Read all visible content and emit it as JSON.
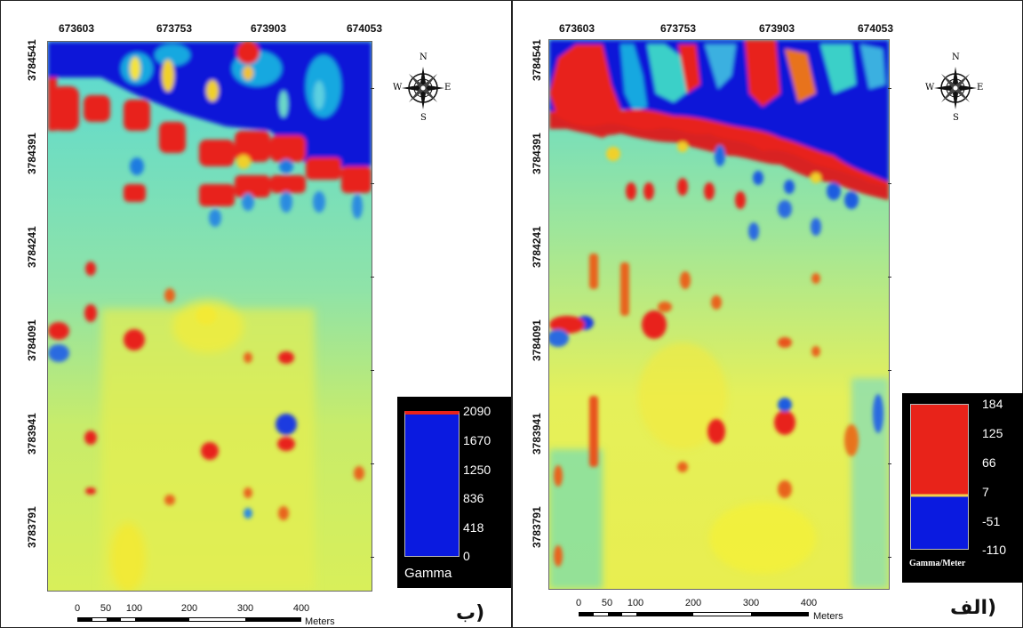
{
  "left_panel": {
    "panel_label": "ب)",
    "x_ticks": [
      "673603",
      "673753",
      "673903",
      "674053"
    ],
    "y_ticks": [
      "3784541",
      "3784391",
      "3784241",
      "3784091",
      "3783941",
      "3783791"
    ],
    "legend": {
      "title": "Gamma",
      "values": [
        "2090",
        "1670",
        "1250",
        "836",
        "418",
        "0"
      ],
      "colors": {
        "top": "#e8231a",
        "main": "#0a1ae0"
      }
    },
    "scale": {
      "labels": [
        "0",
        "50",
        "100",
        "200",
        "300",
        "400"
      ],
      "unit": "Meters"
    },
    "compass": {
      "n": "N",
      "s": "S",
      "e": "E",
      "w": "W"
    }
  },
  "right_panel": {
    "panel_label": "الف)",
    "x_ticks": [
      "673603",
      "673753",
      "673903",
      "674053"
    ],
    "y_ticks": [
      "3784541",
      "3784391",
      "3784241",
      "3784091",
      "3783941",
      "3783791"
    ],
    "legend": {
      "title": "Gamma/Meter",
      "values": [
        "184",
        "125",
        "66",
        "7",
        "-51",
        "-110"
      ],
      "colors": {
        "top": "#e8231a",
        "bottom": "#0a1ae0",
        "line": "#f2d04a"
      }
    },
    "scale": {
      "labels": [
        "0",
        "50",
        "100",
        "200",
        "300",
        "400"
      ],
      "unit": "Meters"
    },
    "compass": {
      "n": "N",
      "s": "S",
      "e": "E",
      "w": "W"
    }
  }
}
